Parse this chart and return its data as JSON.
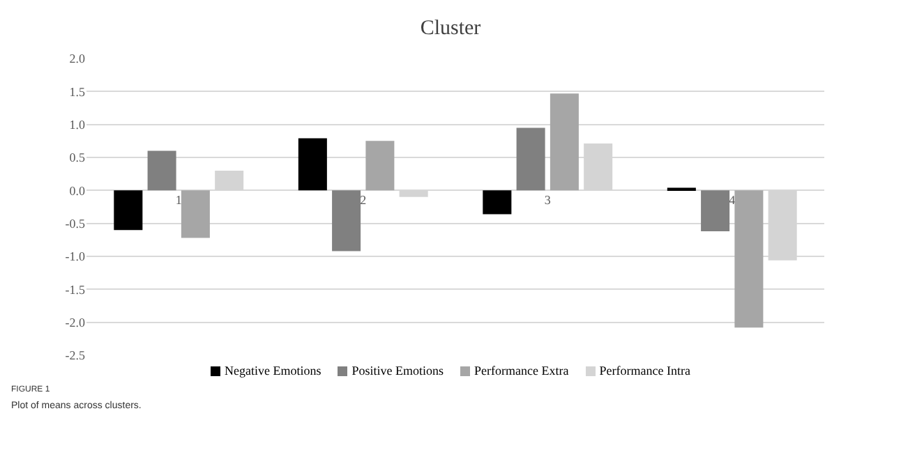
{
  "chart_data": {
    "type": "bar",
    "title": "Cluster",
    "categories": [
      "1",
      "2",
      "3",
      "4"
    ],
    "series": [
      {
        "name": "Negative Emotions",
        "color": "#000000",
        "values": [
          -0.6,
          0.79,
          -0.36,
          0.04
        ]
      },
      {
        "name": "Positive Emotions",
        "color": "#808080",
        "values": [
          0.6,
          -0.92,
          0.95,
          -0.62
        ]
      },
      {
        "name": "Performance Extra",
        "color": "#a6a6a6",
        "values": [
          -0.72,
          0.75,
          1.47,
          -2.08
        ]
      },
      {
        "name": "Performance Intra",
        "color": "#d4d4d4",
        "values": [
          0.3,
          -0.1,
          0.71,
          -1.06
        ]
      }
    ],
    "ylim": [
      -2.5,
      2.0
    ],
    "yticks": [
      {
        "value": -2.5,
        "label": "-2.5"
      },
      {
        "value": -2,
        "label": "-2.0"
      },
      {
        "value": -1.5,
        "label": "-1.5"
      },
      {
        "value": -1,
        "label": "-1.0"
      },
      {
        "value": -0.5,
        "label": "-0.5"
      },
      {
        "value": 0,
        "label": "0.0"
      },
      {
        "value": 0.5,
        "label": "0.5"
      },
      {
        "value": 1,
        "label": "1.0"
      },
      {
        "value": 1.5,
        "label": "1.5"
      },
      {
        "value": 2,
        "label": "2.0"
      }
    ],
    "grid": "y",
    "legend": "bottom",
    "annotations": [
      "FIGURE 1",
      "Plot of means across clusters."
    ]
  }
}
